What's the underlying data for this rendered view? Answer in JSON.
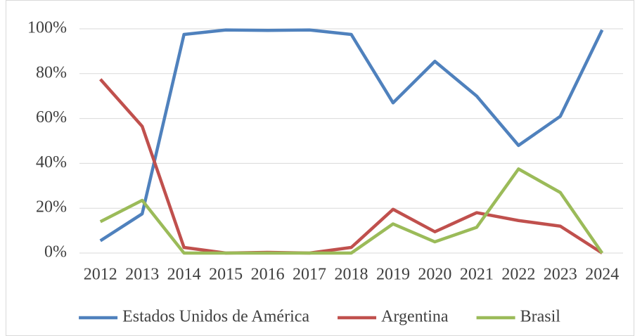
{
  "chart_data": {
    "type": "line",
    "categories": [
      "2012",
      "2013",
      "2014",
      "2015",
      "2016",
      "2017",
      "2018",
      "2019",
      "2020",
      "2021",
      "2022",
      "2023",
      "2024"
    ],
    "series": [
      {
        "name": "Estados Unidos de América",
        "color": "#4f81bd",
        "values": [
          5.5,
          17.5,
          97.5,
          99.5,
          99.3,
          99.5,
          97.5,
          67,
          85.5,
          70,
          48,
          61,
          99.5
        ]
      },
      {
        "name": "Argentina",
        "color": "#c0504d",
        "values": [
          77.5,
          56.5,
          2.5,
          0,
          0.3,
          0,
          2.5,
          19.5,
          9.5,
          18,
          14.5,
          12,
          0
        ]
      },
      {
        "name": "Brasil",
        "color": "#9bbb59",
        "values": [
          14,
          23.5,
          0,
          0,
          0,
          0,
          0,
          13,
          5,
          11.5,
          37.5,
          27,
          0
        ]
      }
    ],
    "ylim": [
      0,
      100
    ],
    "yticks": [
      {
        "value": 0,
        "label": "0%"
      },
      {
        "value": 20,
        "label": "20%"
      },
      {
        "value": 40,
        "label": "40%"
      },
      {
        "value": 60,
        "label": "60%"
      },
      {
        "value": 80,
        "label": "80%"
      },
      {
        "value": 100,
        "label": "100%"
      }
    ],
    "grid": true,
    "legend": "bottom"
  }
}
